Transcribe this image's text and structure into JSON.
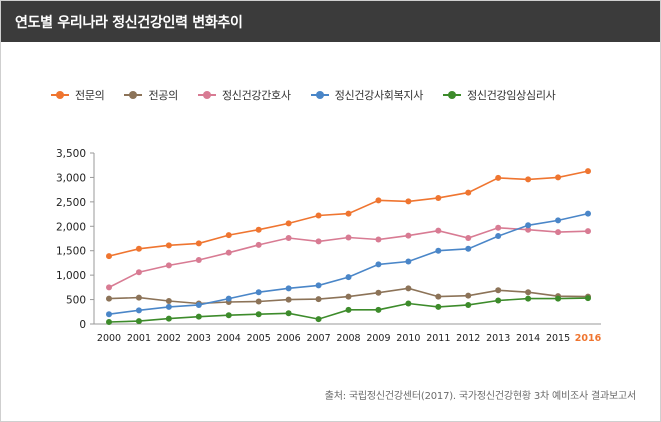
{
  "header": {
    "title": "연도별 우리나라 정신건강인력 변화추이"
  },
  "chart_data": {
    "type": "line",
    "title": "연도별 우리나라 정신건강인력 변화추이",
    "x": [
      "2000",
      "2001",
      "2002",
      "2003",
      "2004",
      "2005",
      "2006",
      "2007",
      "2008",
      "2009",
      "2010",
      "2011",
      "2012",
      "2013",
      "2014",
      "2015",
      "2016"
    ],
    "highlight_x": "2016",
    "ylim": [
      0,
      3500
    ],
    "yticks": [
      {
        "value": 0,
        "label": "0"
      },
      {
        "value": 500,
        "label": "500"
      },
      {
        "value": 1000,
        "label": "1,000"
      },
      {
        "value": 1500,
        "label": "1,500"
      },
      {
        "value": 2000,
        "label": "2,000"
      },
      {
        "value": 2500,
        "label": "2,500"
      },
      {
        "value": 3000,
        "label": "3,000"
      },
      {
        "value": 3500,
        "label": "3,500"
      }
    ],
    "grid": false,
    "legend_position": "top-left",
    "series": [
      {
        "name": "전문의",
        "color": "#ef7530",
        "values": [
          1390,
          1540,
          1610,
          1650,
          1820,
          1930,
          2060,
          2220,
          2260,
          2530,
          2510,
          2580,
          2690,
          2990,
          2960,
          3000,
          3130
        ]
      },
      {
        "name": "전공의",
        "color": "#8c7358",
        "values": [
          520,
          540,
          470,
          420,
          450,
          460,
          500,
          510,
          560,
          640,
          730,
          560,
          580,
          690,
          650,
          570,
          560
        ]
      },
      {
        "name": "정신건강간호사",
        "color": "#d87b93",
        "values": [
          750,
          1060,
          1200,
          1310,
          1460,
          1620,
          1760,
          1690,
          1770,
          1730,
          1810,
          1910,
          1760,
          1970,
          1930,
          1880,
          1900
        ]
      },
      {
        "name": "정신건강사회복지사",
        "color": "#4a86c8",
        "values": [
          200,
          280,
          350,
          390,
          520,
          650,
          730,
          790,
          960,
          1220,
          1280,
          1500,
          1540,
          1800,
          2020,
          2120,
          2260
        ]
      },
      {
        "name": "정신건강임상심리사",
        "color": "#3d8b2b",
        "values": [
          40,
          60,
          110,
          150,
          180,
          200,
          220,
          100,
          290,
          290,
          420,
          350,
          390,
          480,
          520,
          520,
          530
        ]
      }
    ]
  },
  "colors": {
    "highlight_year": "#ef7530",
    "header_bg": "#3b3b3b"
  },
  "source": {
    "text": "출처: 국립정신건강센터(2017). 국가정신건강현황 3차 예비조사 결과보고서"
  }
}
